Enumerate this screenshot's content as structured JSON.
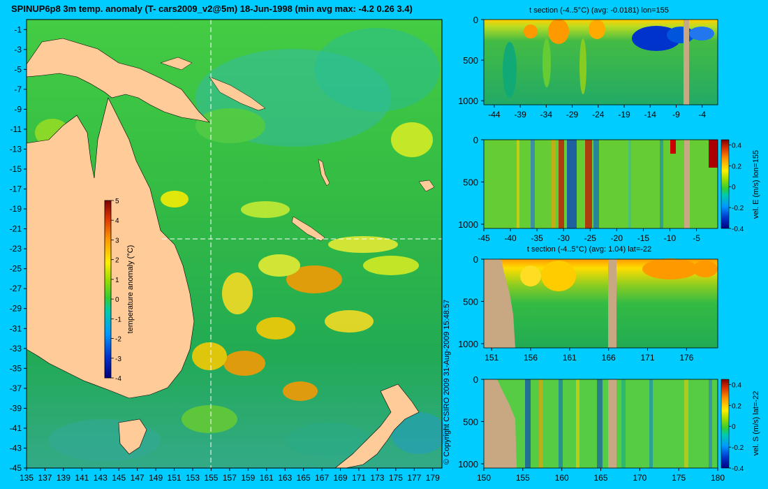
{
  "title": "SPINUP6p8 3m temp. anomaly (T- cars2009_v2@5m) 18-Jun-1998 (min avg max: -4.2 0.26 3.4)",
  "copyright": "© Copyright CSIRO 2009   31-Aug-2009 15:48:57",
  "colors": {
    "background": "#00ccff",
    "land": "#ffcc99",
    "section_land": "#c8a882",
    "dashed_line": "#ffffff"
  },
  "chart_data": [
    {
      "type": "heatmap",
      "name": "map",
      "xlabel": "",
      "ylabel": "",
      "xlim": [
        135,
        180
      ],
      "ylim": [
        -45,
        0
      ],
      "xticks": [
        135,
        137,
        139,
        141,
        143,
        145,
        147,
        149,
        151,
        153,
        155,
        157,
        159,
        161,
        163,
        165,
        167,
        169,
        171,
        173,
        175,
        177,
        179
      ],
      "yticks": [
        -1,
        -3,
        -5,
        -7,
        -9,
        -11,
        -13,
        -15,
        -17,
        -19,
        -21,
        -23,
        -25,
        -27,
        -29,
        -31,
        -33,
        -35,
        -37,
        -39,
        -41,
        -43,
        -45
      ],
      "section_lon": 155,
      "section_lat": -22,
      "colorbar": {
        "label": "temperature anomaly (°C)",
        "ticks": [
          5,
          4,
          3,
          2,
          1,
          0,
          -1,
          -2,
          -3,
          -4
        ],
        "range": [
          -4,
          5
        ]
      }
    },
    {
      "type": "heatmap",
      "name": "t-section-lon155",
      "title": "t section (-4..5°C) (avg: -0.0181) lon=155",
      "xlim": [
        -46,
        -1
      ],
      "ylim": [
        1050,
        0
      ],
      "xticks": [
        -44,
        -39,
        -34,
        -29,
        -24,
        -19,
        -14,
        -9,
        -4
      ],
      "yticks": [
        0,
        500,
        1000
      ],
      "land_x": [
        -7.0,
        -6.0
      ]
    },
    {
      "type": "heatmap",
      "name": "velE-section-lon155",
      "xlim": [
        -45,
        -1
      ],
      "ylim": [
        1050,
        0
      ],
      "xticks": [
        -45,
        -40,
        -35,
        -30,
        -25,
        -20,
        -15,
        -10,
        -5
      ],
      "yticks": [
        0,
        500,
        1000
      ],
      "land_x": [
        -6.5,
        -5.5
      ],
      "colorbar": {
        "label": "vel. E (m/s) lon=155",
        "ticks": [
          0.4,
          0.2,
          0,
          -0.2,
          -0.4
        ],
        "range": [
          -0.4,
          0.45
        ]
      }
    },
    {
      "type": "heatmap",
      "name": "t-section-lat-22",
      "title": "t section (-4..5°C) (avg: 1.04) lat=-22",
      "xlim": [
        150,
        180
      ],
      "ylim": [
        1050,
        0
      ],
      "xticks": [
        151,
        156,
        161,
        166,
        171,
        176
      ],
      "yticks": [
        0,
        500,
        1000
      ],
      "land_x": [
        166,
        167.4
      ]
    },
    {
      "type": "heatmap",
      "name": "velS-section-lat-22",
      "xlim": [
        150,
        180
      ],
      "ylim": [
        1050,
        0
      ],
      "xticks": [
        150,
        155,
        160,
        165,
        170,
        175,
        180
      ],
      "yticks": [
        0,
        500,
        1000
      ],
      "land_x": [
        166,
        167.4
      ],
      "colorbar": {
        "label": "vel. S (m/s) lat=-22",
        "ticks": [
          0.4,
          0.2,
          0,
          -0.2,
          -0.4
        ],
        "range": [
          -0.4,
          0.45
        ]
      }
    }
  ]
}
